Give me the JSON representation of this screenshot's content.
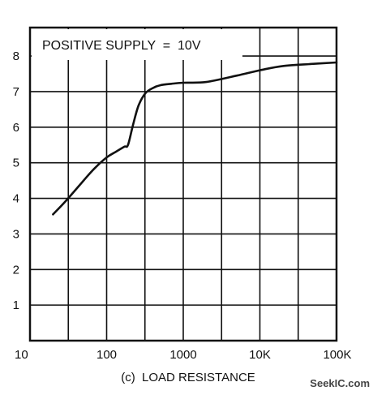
{
  "chart_data": {
    "type": "line",
    "title": "",
    "annotation": "POSITIVE SUPPLY  =  10V",
    "xlabel": "(c)  LOAD RESISTANCE",
    "ylabel": "",
    "x_scale": "log",
    "xlim": [
      10,
      100000
    ],
    "ylim": [
      0,
      8.8
    ],
    "grid": true,
    "x_ticks": [
      10,
      100,
      1000,
      10000,
      100000
    ],
    "x_tick_labels": [
      "10",
      "100",
      "1000",
      "10K",
      "100K"
    ],
    "y_ticks": [
      1,
      2,
      3,
      4,
      5,
      6,
      7,
      8
    ],
    "y_tick_labels": [
      "1",
      "2",
      "3",
      "4",
      "5",
      "6",
      "7",
      "8"
    ],
    "series": [
      {
        "x": [
          20,
          30,
          50,
          70,
          100,
          130,
          170,
          190,
          220,
          260,
          320,
          400,
          500,
          700,
          1000,
          2000,
          5000,
          10000,
          20000,
          50000,
          100000
        ],
        "y": [
          3.55,
          3.95,
          4.5,
          4.85,
          5.15,
          5.3,
          5.45,
          5.5,
          6.05,
          6.6,
          6.95,
          7.1,
          7.18,
          7.22,
          7.25,
          7.27,
          7.45,
          7.6,
          7.72,
          7.78,
          7.82
        ]
      }
    ]
  },
  "watermark": "SeekIC.com"
}
